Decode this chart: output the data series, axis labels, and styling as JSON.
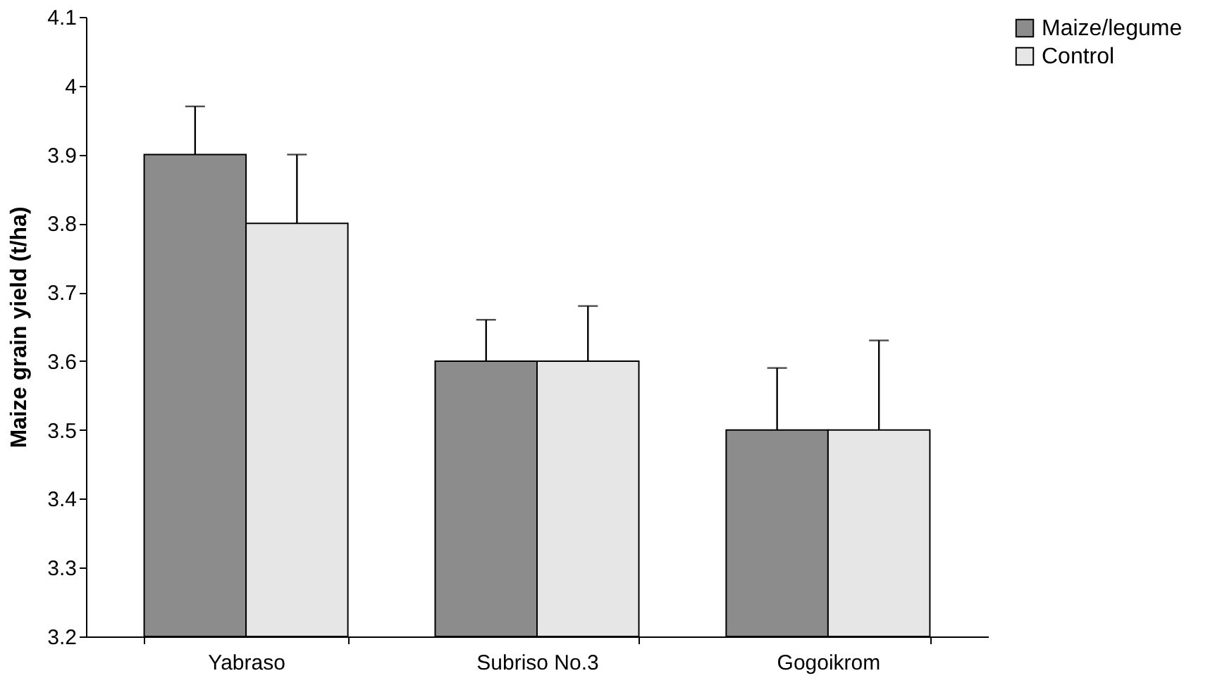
{
  "chart_data": {
    "type": "bar",
    "ylabel": "Maize grain yield (t/ha)",
    "categories": [
      "Yabraso",
      "Subriso No.3",
      "Gogoikrom"
    ],
    "series": [
      {
        "name": "Maize/legume",
        "color": "#8c8c8c",
        "values": [
          3.9,
          3.6,
          3.5
        ],
        "errors": [
          [
            3.9,
            3.97
          ],
          [
            3.6,
            3.66
          ],
          [
            3.5,
            3.59
          ]
        ]
      },
      {
        "name": "Control",
        "color": "#e6e6e6",
        "values": [
          3.8,
          3.6,
          3.5
        ],
        "errors": [
          [
            3.8,
            3.9
          ],
          [
            3.6,
            3.68
          ],
          [
            3.5,
            3.63
          ]
        ]
      }
    ],
    "ylim": [
      3.2,
      4.1
    ],
    "yticks": [
      3.2,
      3.3,
      3.4,
      3.5,
      3.6,
      3.7,
      3.8,
      3.9,
      4,
      4.1
    ],
    "grid": false,
    "legend": "right"
  }
}
